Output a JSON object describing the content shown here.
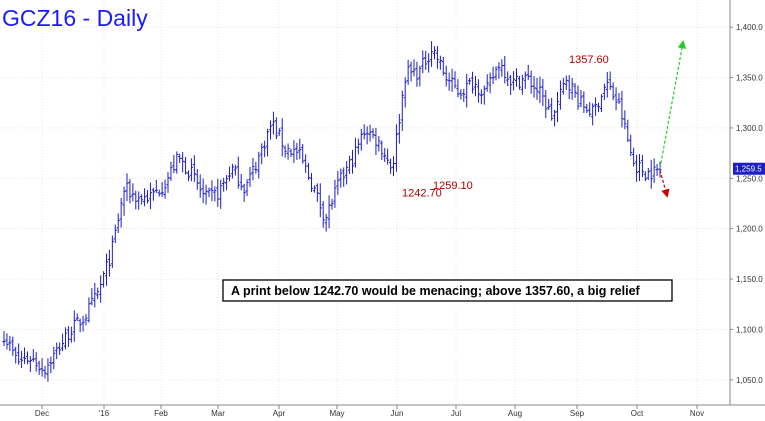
{
  "chart_data": {
    "type": "ohlc",
    "title": "GCZ16 - Daily",
    "xlabel": "",
    "ylabel": "",
    "ylim": [
      1025,
      1425
    ],
    "y_ticks": [
      "1,050.0",
      "1,100.0",
      "1,150.0",
      "1,200.0",
      "1,250.0",
      "1,300.0",
      "1,350.0",
      "1,400.0"
    ],
    "y_tick_values": [
      1050,
      1100,
      1150,
      1200,
      1250,
      1300,
      1350,
      1400
    ],
    "x_ticks": [
      "Dec",
      "'16",
      "Feb",
      "Mar",
      "Apr",
      "May",
      "Jun",
      "Jul",
      "Aug",
      "Sep",
      "Oct",
      "Nov"
    ],
    "grid": true,
    "last_price_label": "1,259.5",
    "last_price": 1259.5,
    "anchors": [
      [
        1095,
        1095
      ],
      [
        1068,
        1075
      ],
      [
        1072,
        1082
      ],
      [
        1060,
        1065
      ],
      [
        1080,
        1080
      ],
      [
        1100,
        1110
      ],
      [
        1112,
        1120
      ],
      [
        1135,
        1142
      ],
      [
        1175,
        1190
      ],
      [
        1240,
        1245
      ],
      [
        1230,
        1240
      ],
      [
        1232,
        1245
      ],
      [
        1245,
        1248
      ],
      [
        1270,
        1275
      ],
      [
        1255,
        1258
      ],
      [
        1230,
        1235
      ],
      [
        1235,
        1240
      ],
      [
        1260,
        1262
      ],
      [
        1240,
        1245
      ],
      [
        1270,
        1280
      ],
      [
        1305,
        1310
      ],
      [
        1280,
        1285
      ],
      [
        1275,
        1280
      ],
      [
        1245,
        1248
      ],
      [
        1210,
        1212
      ],
      [
        1245,
        1245
      ],
      [
        1268,
        1272
      ],
      [
        1300,
        1305
      ],
      [
        1285,
        1288
      ],
      [
        1260,
        1262
      ],
      [
        1355,
        1360
      ],
      [
        1355,
        1360
      ],
      [
        1380,
        1382
      ],
      [
        1350,
        1355
      ],
      [
        1335,
        1340
      ],
      [
        1345,
        1348
      ],
      [
        1335,
        1340
      ],
      [
        1365,
        1370
      ],
      [
        1345,
        1350
      ],
      [
        1350,
        1355
      ],
      [
        1335,
        1340
      ],
      [
        1310,
        1315
      ],
      [
        1350,
        1358
      ],
      [
        1325,
        1328
      ],
      [
        1315,
        1318
      ],
      [
        1345,
        1348
      ],
      [
        1320,
        1325
      ],
      [
        1265,
        1268
      ],
      [
        1255,
        1258
      ],
      [
        1258,
        1260
      ]
    ],
    "annotations": [
      {
        "text": "1357.60",
        "price": 1357.6
      },
      {
        "text": "1259.10",
        "price": 1259.1
      },
      {
        "text": "1242.70",
        "price": 1242.7
      }
    ],
    "note": "A print below 1242.70 would be menacing; above 1357.60, a big relief",
    "projections": [
      {
        "direction": "up",
        "color": "#22cc22",
        "from": 1260,
        "to": 1385
      },
      {
        "direction": "down",
        "color": "#cc0000",
        "from": 1258,
        "to": 1233
      }
    ],
    "colors": {
      "bars": "#1c1cc8",
      "title": "#1a1aff",
      "annotation": "#b00000",
      "grid": "#d8d8d8"
    }
  }
}
